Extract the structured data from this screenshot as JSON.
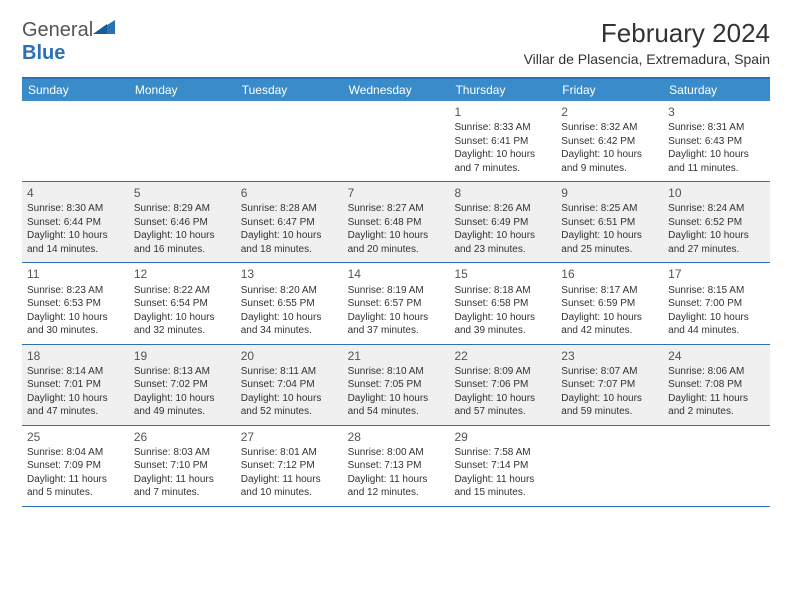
{
  "brand": {
    "part1": "General",
    "part2": "Blue"
  },
  "title": "February 2024",
  "location": "Villar de Plasencia, Extremadura, Spain",
  "colors": {
    "header_bg": "#3a8bc9",
    "border": "#2a72b5",
    "alt_row": "#f0f0f0",
    "text": "#333333",
    "white": "#ffffff"
  },
  "dow": [
    "Sunday",
    "Monday",
    "Tuesday",
    "Wednesday",
    "Thursday",
    "Friday",
    "Saturday"
  ],
  "weeks": [
    {
      "alt": false,
      "cells": [
        null,
        null,
        null,
        null,
        {
          "d": "1",
          "sr": "8:33 AM",
          "ss": "6:41 PM",
          "dl": "10 hours and 7 minutes."
        },
        {
          "d": "2",
          "sr": "8:32 AM",
          "ss": "6:42 PM",
          "dl": "10 hours and 9 minutes."
        },
        {
          "d": "3",
          "sr": "8:31 AM",
          "ss": "6:43 PM",
          "dl": "10 hours and 11 minutes."
        }
      ]
    },
    {
      "alt": true,
      "cells": [
        {
          "d": "4",
          "sr": "8:30 AM",
          "ss": "6:44 PM",
          "dl": "10 hours and 14 minutes."
        },
        {
          "d": "5",
          "sr": "8:29 AM",
          "ss": "6:46 PM",
          "dl": "10 hours and 16 minutes."
        },
        {
          "d": "6",
          "sr": "8:28 AM",
          "ss": "6:47 PM",
          "dl": "10 hours and 18 minutes."
        },
        {
          "d": "7",
          "sr": "8:27 AM",
          "ss": "6:48 PM",
          "dl": "10 hours and 20 minutes."
        },
        {
          "d": "8",
          "sr": "8:26 AM",
          "ss": "6:49 PM",
          "dl": "10 hours and 23 minutes."
        },
        {
          "d": "9",
          "sr": "8:25 AM",
          "ss": "6:51 PM",
          "dl": "10 hours and 25 minutes."
        },
        {
          "d": "10",
          "sr": "8:24 AM",
          "ss": "6:52 PM",
          "dl": "10 hours and 27 minutes."
        }
      ]
    },
    {
      "alt": false,
      "cells": [
        {
          "d": "11",
          "sr": "8:23 AM",
          "ss": "6:53 PM",
          "dl": "10 hours and 30 minutes."
        },
        {
          "d": "12",
          "sr": "8:22 AM",
          "ss": "6:54 PM",
          "dl": "10 hours and 32 minutes."
        },
        {
          "d": "13",
          "sr": "8:20 AM",
          "ss": "6:55 PM",
          "dl": "10 hours and 34 minutes."
        },
        {
          "d": "14",
          "sr": "8:19 AM",
          "ss": "6:57 PM",
          "dl": "10 hours and 37 minutes."
        },
        {
          "d": "15",
          "sr": "8:18 AM",
          "ss": "6:58 PM",
          "dl": "10 hours and 39 minutes."
        },
        {
          "d": "16",
          "sr": "8:17 AM",
          "ss": "6:59 PM",
          "dl": "10 hours and 42 minutes."
        },
        {
          "d": "17",
          "sr": "8:15 AM",
          "ss": "7:00 PM",
          "dl": "10 hours and 44 minutes."
        }
      ]
    },
    {
      "alt": true,
      "cells": [
        {
          "d": "18",
          "sr": "8:14 AM",
          "ss": "7:01 PM",
          "dl": "10 hours and 47 minutes."
        },
        {
          "d": "19",
          "sr": "8:13 AM",
          "ss": "7:02 PM",
          "dl": "10 hours and 49 minutes."
        },
        {
          "d": "20",
          "sr": "8:11 AM",
          "ss": "7:04 PM",
          "dl": "10 hours and 52 minutes."
        },
        {
          "d": "21",
          "sr": "8:10 AM",
          "ss": "7:05 PM",
          "dl": "10 hours and 54 minutes."
        },
        {
          "d": "22",
          "sr": "8:09 AM",
          "ss": "7:06 PM",
          "dl": "10 hours and 57 minutes."
        },
        {
          "d": "23",
          "sr": "8:07 AM",
          "ss": "7:07 PM",
          "dl": "10 hours and 59 minutes."
        },
        {
          "d": "24",
          "sr": "8:06 AM",
          "ss": "7:08 PM",
          "dl": "11 hours and 2 minutes."
        }
      ]
    },
    {
      "alt": false,
      "cells": [
        {
          "d": "25",
          "sr": "8:04 AM",
          "ss": "7:09 PM",
          "dl": "11 hours and 5 minutes."
        },
        {
          "d": "26",
          "sr": "8:03 AM",
          "ss": "7:10 PM",
          "dl": "11 hours and 7 minutes."
        },
        {
          "d": "27",
          "sr": "8:01 AM",
          "ss": "7:12 PM",
          "dl": "11 hours and 10 minutes."
        },
        {
          "d": "28",
          "sr": "8:00 AM",
          "ss": "7:13 PM",
          "dl": "11 hours and 12 minutes."
        },
        {
          "d": "29",
          "sr": "7:58 AM",
          "ss": "7:14 PM",
          "dl": "11 hours and 15 minutes."
        },
        null,
        null
      ]
    }
  ],
  "labels": {
    "sunrise": "Sunrise:",
    "sunset": "Sunset:",
    "daylight": "Daylight:"
  }
}
